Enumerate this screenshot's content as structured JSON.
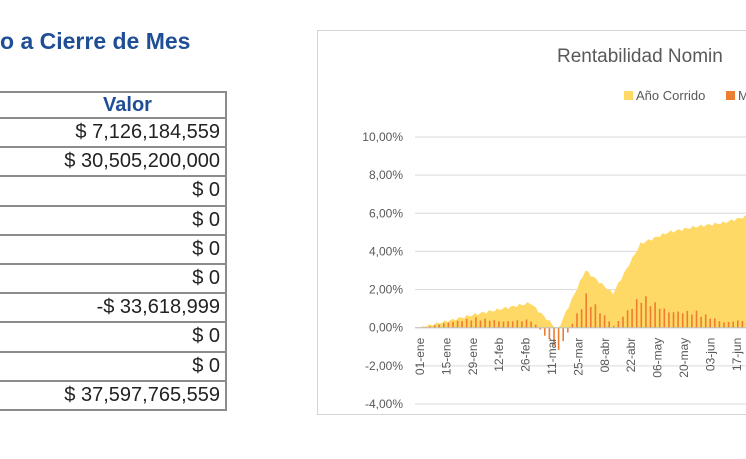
{
  "page_title": "o a Cierre de Mes",
  "table": {
    "header": "Valor",
    "rows": [
      "$ 7,126,184,559",
      "$ 30,505,200,000",
      "$ 0",
      "$ 0",
      "$ 0",
      "$ 0",
      "-$ 33,618,999",
      "$ 0",
      "$ 0",
      "$ 37,597,765,559"
    ]
  },
  "chart_data": {
    "type": "area",
    "title": "Rentabilidad Nomin",
    "legend_position": "top-right",
    "ylim": [
      -4,
      10
    ],
    "yticks": [
      "10,00%",
      "8,00%",
      "6,00%",
      "4,00%",
      "2,00%",
      "0,00%",
      "-2,00%",
      "-4,00%"
    ],
    "ytick_values": [
      10,
      8,
      6,
      4,
      2,
      0,
      -2,
      -4
    ],
    "categories": [
      "01-ene",
      "15-ene",
      "29-ene",
      "12-feb",
      "26-feb",
      "11-mar",
      "25-mar",
      "08-abr",
      "22-abr",
      "06-may",
      "20-may",
      "03-jun",
      "17-jun"
    ],
    "series": [
      {
        "name": "Año Corrido",
        "color": "#ffd966",
        "type": "area",
        "values": [
          0.0,
          0.35,
          0.7,
          1.0,
          1.3,
          -0.1,
          3.0,
          1.8,
          4.4,
          5.0,
          5.3,
          5.5,
          5.9
        ]
      },
      {
        "name": "M",
        "color": "#ed7d31",
        "type": "bar",
        "values": [
          0.0,
          0.3,
          0.55,
          0.35,
          0.45,
          -1.3,
          1.8,
          0.1,
          1.8,
          0.9,
          0.9,
          0.3,
          0.5
        ]
      }
    ]
  }
}
